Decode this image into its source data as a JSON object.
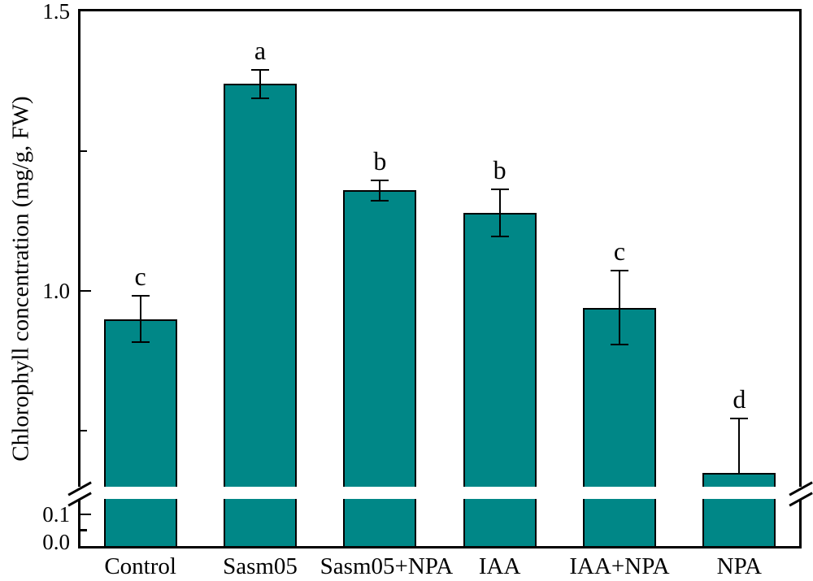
{
  "chart_data": {
    "type": "bar",
    "title": "",
    "xlabel": "",
    "ylabel": "Chlorophyll concentration (mg/g, FW)",
    "categories": [
      "Control",
      "Sasm05",
      "Sasm05+NPA",
      "IAA",
      "IAA+NPA",
      "NPA"
    ],
    "values": [
      0.95,
      1.37,
      1.18,
      1.14,
      0.97,
      0.675
    ],
    "errors": [
      0.042,
      0.026,
      0.018,
      0.042,
      0.066,
      0.097
    ],
    "sig_letters": [
      "c",
      "a",
      "b",
      "b",
      "c",
      "d"
    ],
    "bar_color": "#008787",
    "bar_edge_color": "#000000",
    "error_bar_color": "#000000",
    "grid": false,
    "legend": null,
    "axis_break": {
      "lower_range": [
        0.0,
        0.1
      ],
      "upper_range": [
        0.65,
        1.5
      ]
    },
    "y_ticks_labeled": [
      0.0,
      0.1,
      1.0,
      1.5
    ],
    "y_minor_ticks": [
      0.05,
      0.75,
      1.25
    ],
    "y_tick_label_format": "one-decimal"
  }
}
